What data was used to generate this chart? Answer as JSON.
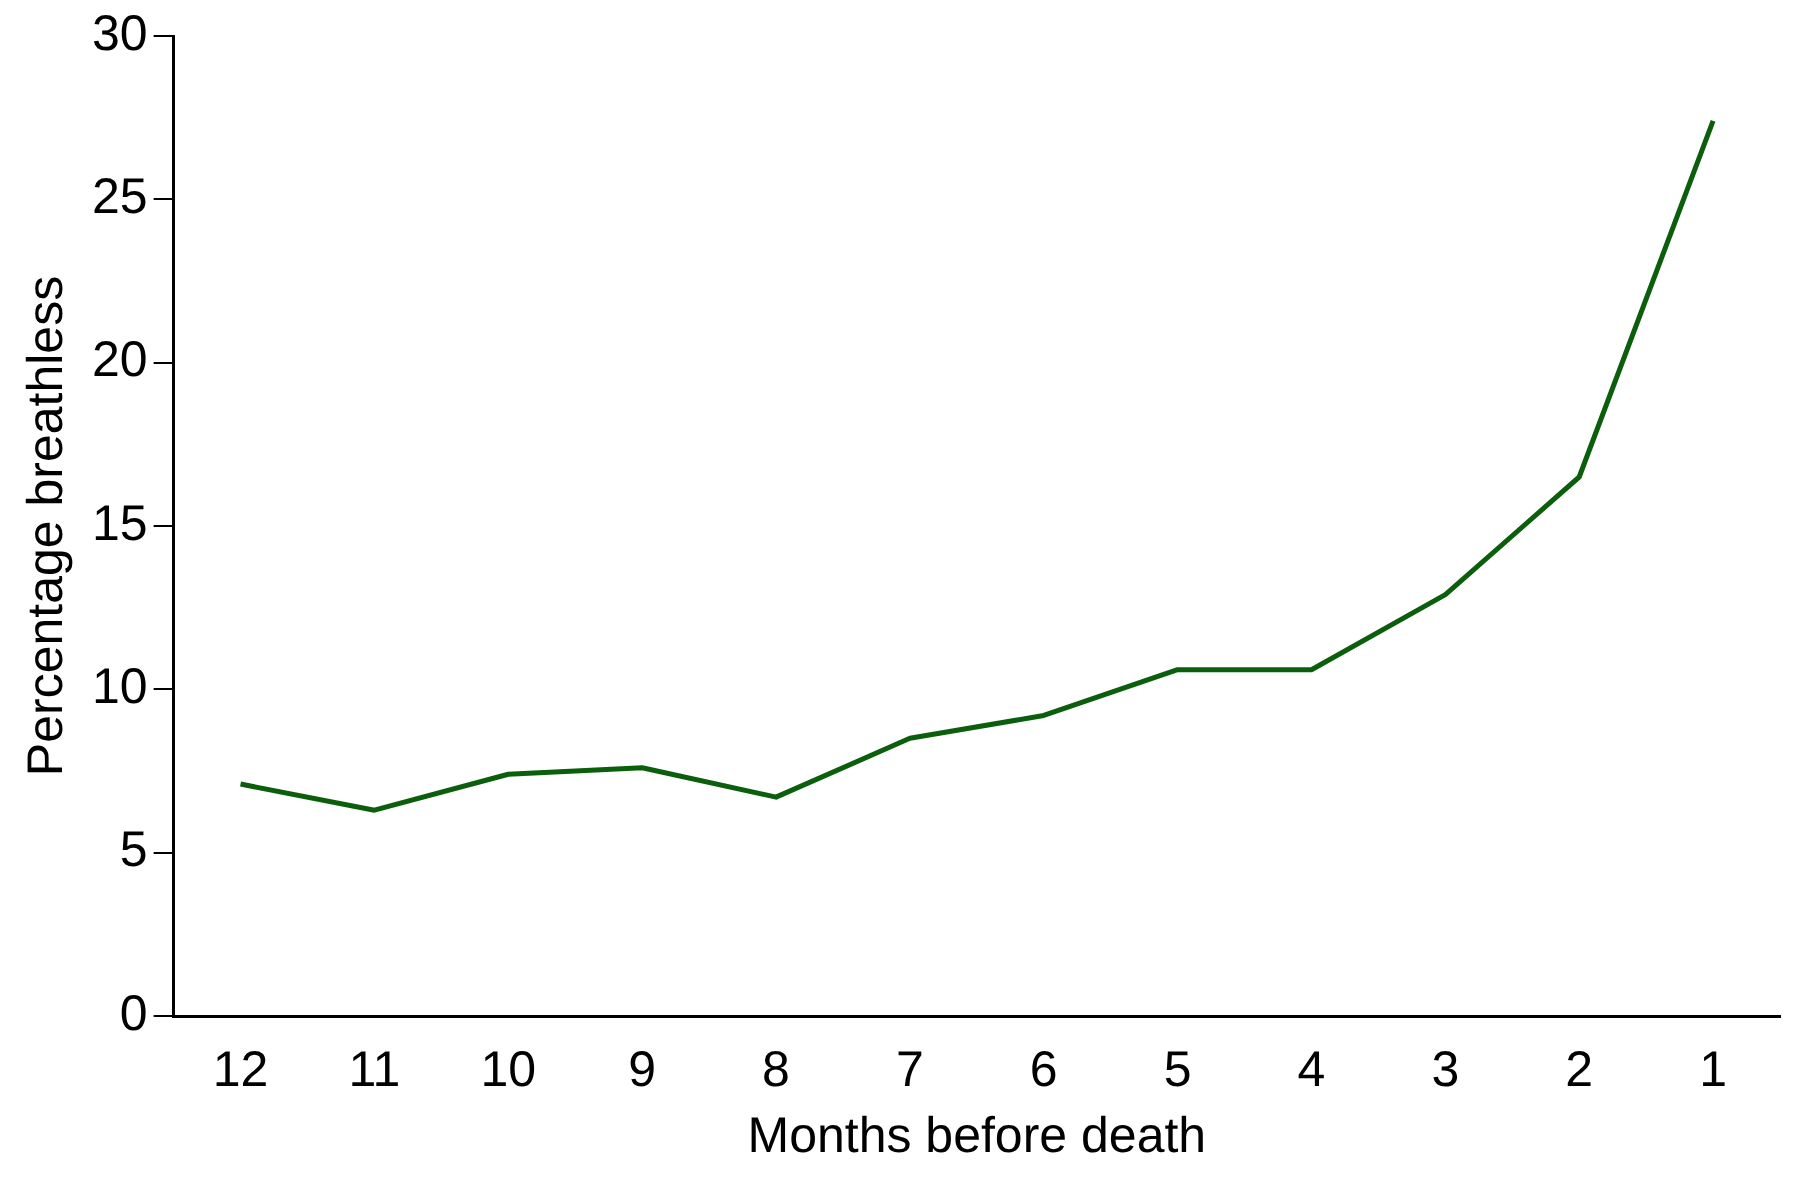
{
  "chart_data": {
    "type": "line",
    "xlabel": "Months before death",
    "ylabel": "Percentage breathless",
    "categories": [
      "12",
      "11",
      "10",
      "9",
      "8",
      "7",
      "6",
      "5",
      "4",
      "3",
      "2",
      "1"
    ],
    "series": [
      {
        "color": "#0b5e0b",
        "values": [
          7.1,
          6.3,
          7.4,
          7.6,
          6.7,
          8.5,
          9.2,
          10.6,
          10.6,
          12.9,
          16.5,
          27.4
        ]
      }
    ],
    "ylim": [
      0,
      30
    ],
    "yticks": [
      0,
      5,
      10,
      15,
      20,
      25,
      30
    ],
    "grid": false,
    "legend": false,
    "marker": "none",
    "line_style": "solid"
  }
}
